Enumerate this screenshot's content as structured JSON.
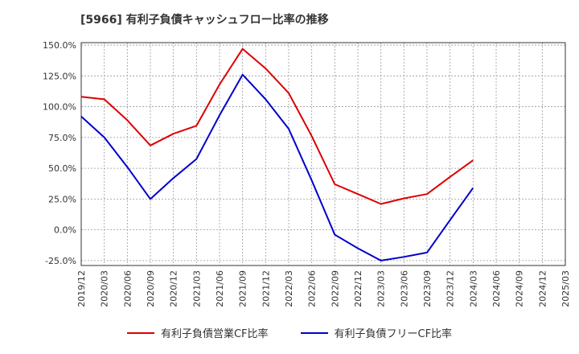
{
  "chart_data": {
    "type": "line",
    "title": "[5966]  有利子負債キャッシュフロー比率の推移",
    "xlabel": "",
    "ylabel": "",
    "x_categories": [
      "2019/12",
      "2020/03",
      "2020/06",
      "2020/09",
      "2020/12",
      "2021/03",
      "2021/06",
      "2021/09",
      "2021/12",
      "2022/03",
      "2022/06",
      "2022/09",
      "2022/12",
      "2023/03",
      "2023/06",
      "2023/09",
      "2023/12",
      "2024/03",
      "2024/06",
      "2024/09",
      "2024/12",
      "2025/03"
    ],
    "y_ticks": [
      "150.0%",
      "125.0%",
      "100.0%",
      "75.0%",
      "50.0%",
      "25.0%",
      "0.0%",
      "-25.0%"
    ],
    "ylim": [
      -29,
      152
    ],
    "grid": true,
    "legend_position": "bottom",
    "series": [
      {
        "name": "有利子負債営業CF比率",
        "color": "#dd0000",
        "values": [
          108,
          106,
          89,
          68.5,
          78,
          84.5,
          118,
          147,
          131,
          111,
          76,
          37,
          29,
          21,
          25.5,
          29,
          43,
          56.5,
          null,
          null,
          null,
          null
        ]
      },
      {
        "name": "有利子負債フリーCF比率",
        "color": "#0000cc",
        "values": [
          92,
          75,
          51,
          25,
          42,
          57.5,
          93,
          126,
          106,
          82,
          40,
          -4,
          -15,
          -25,
          -22,
          -18.5,
          8,
          34,
          null,
          null,
          null,
          null
        ]
      }
    ]
  }
}
